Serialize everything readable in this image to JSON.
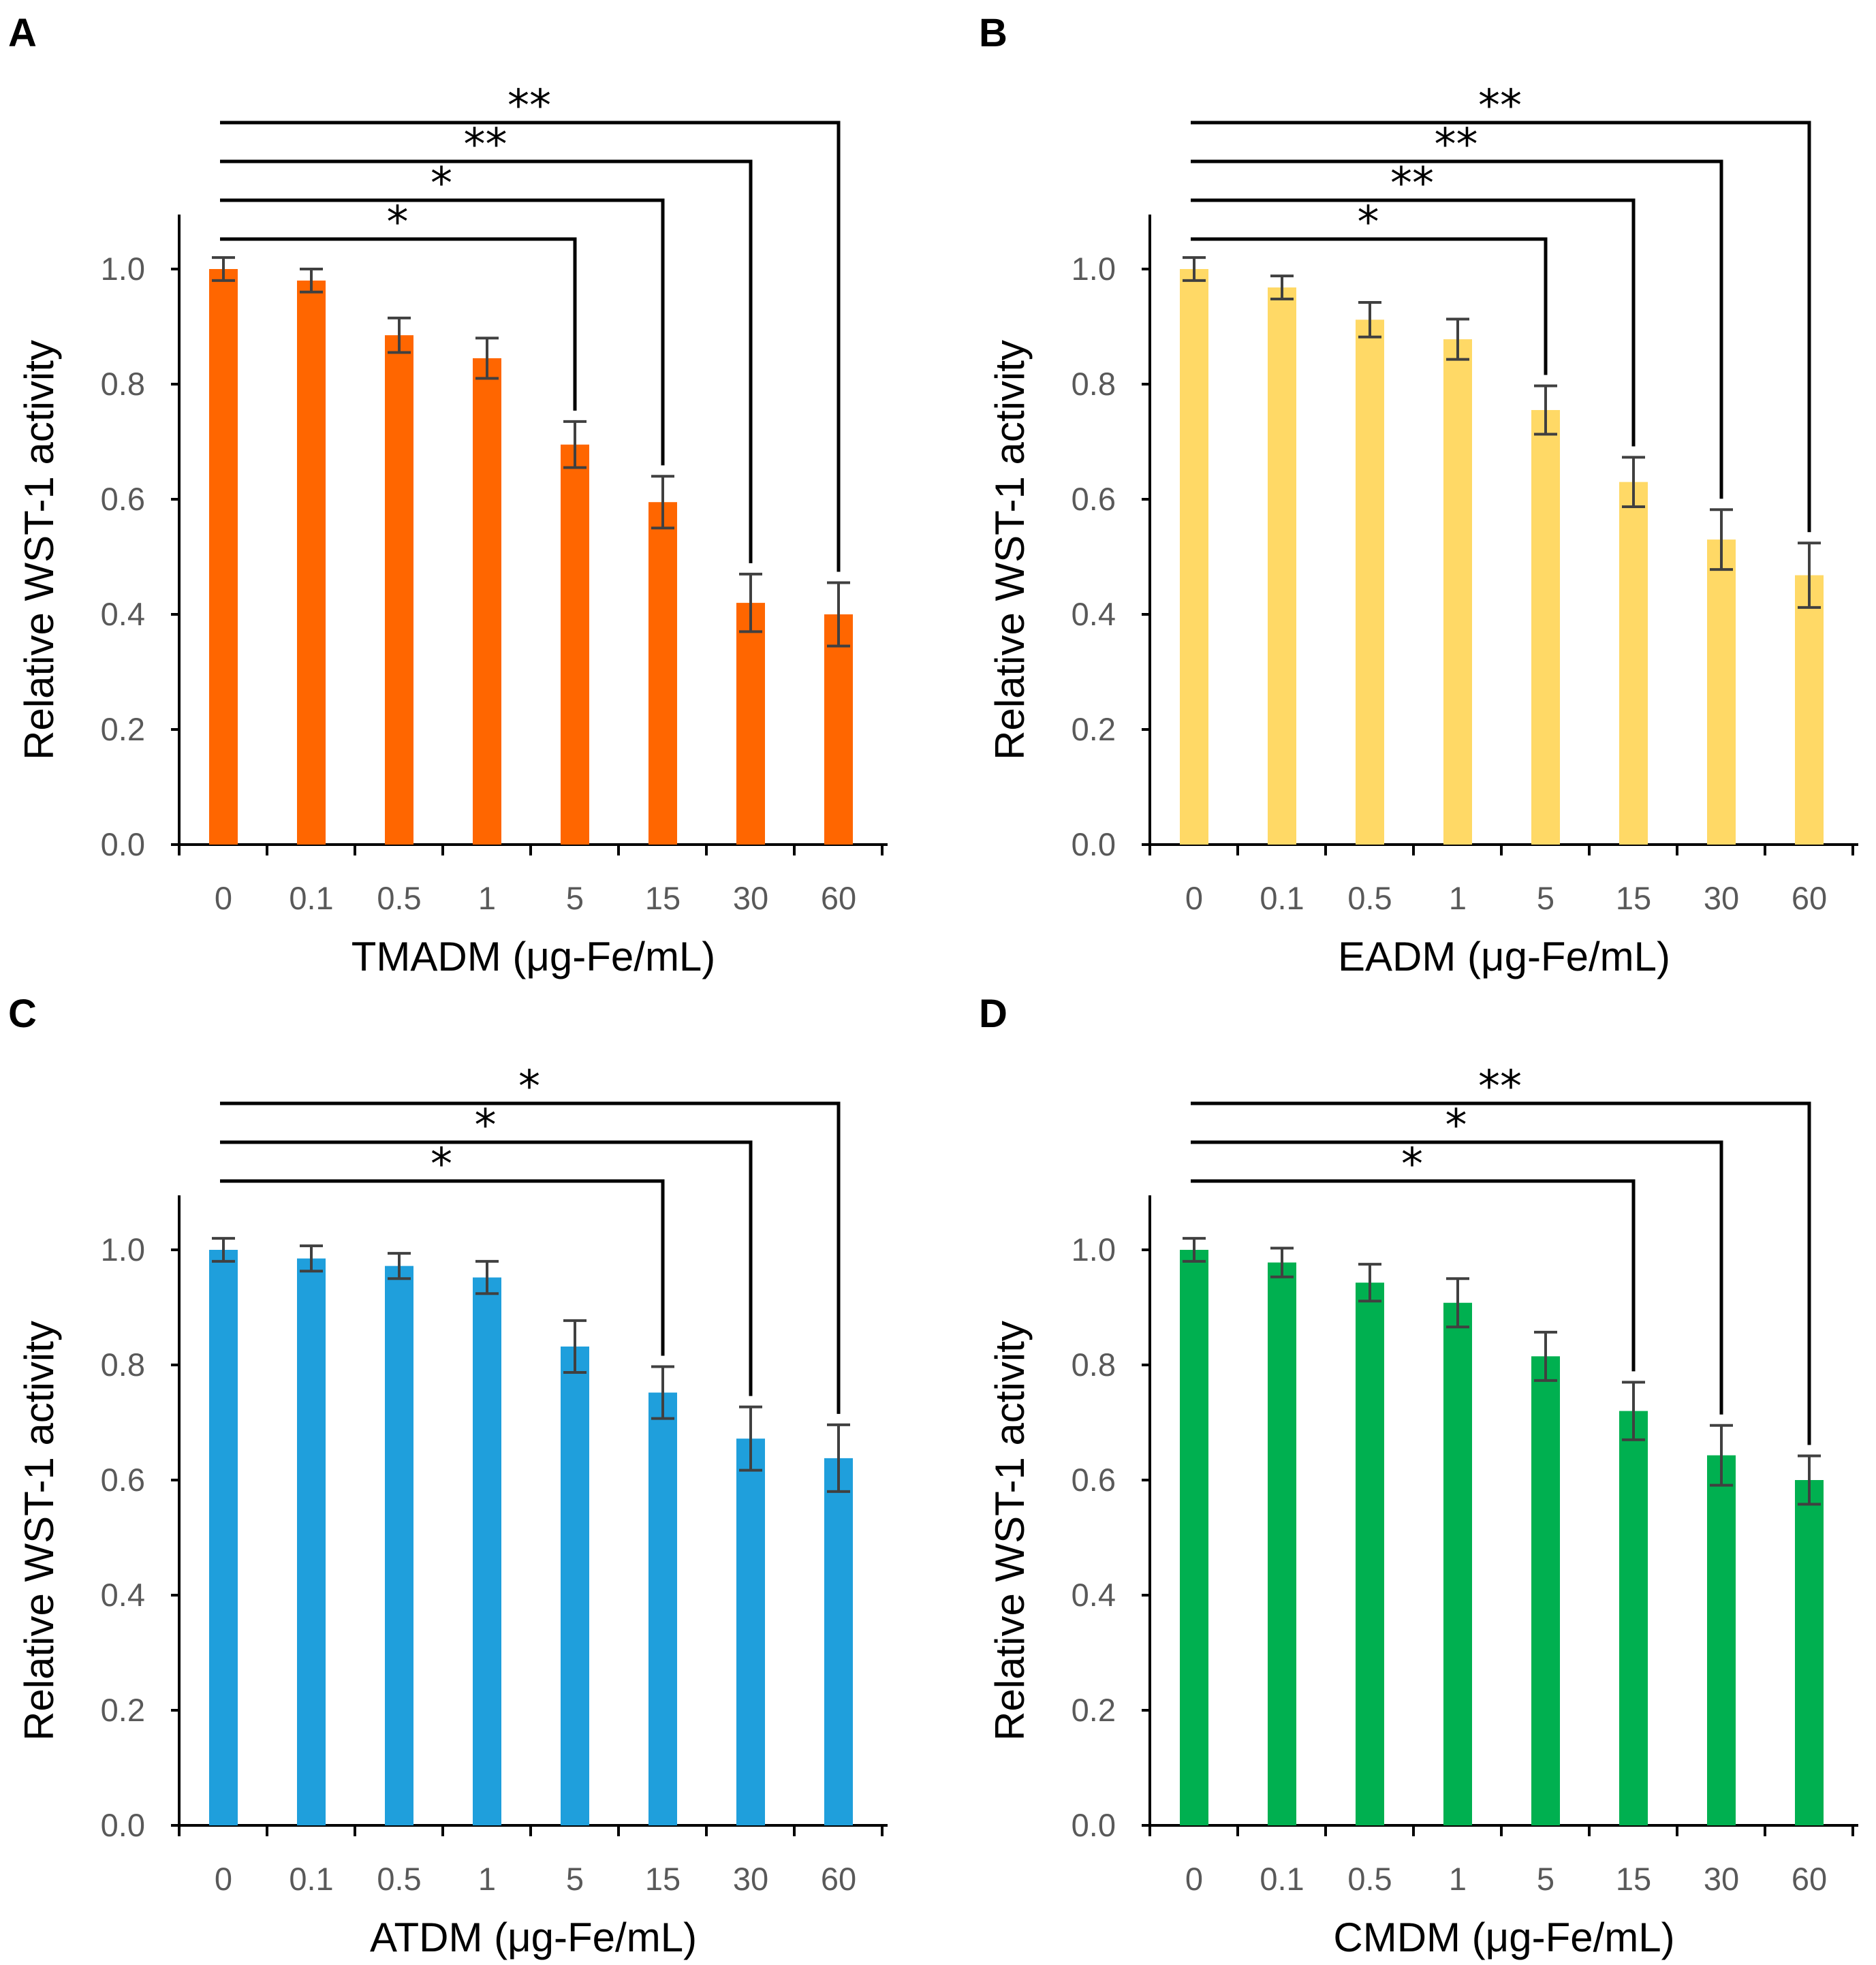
{
  "chart_data": [
    {
      "panel": "A",
      "type": "bar",
      "categories": [
        "0",
        "0.1",
        "0.5",
        "1",
        "5",
        "15",
        "30",
        "60"
      ],
      "values": [
        1.0,
        0.98,
        0.885,
        0.845,
        0.695,
        0.595,
        0.42,
        0.4
      ],
      "errors": [
        0.02,
        0.02,
        0.03,
        0.035,
        0.04,
        0.045,
        0.05,
        0.055
      ],
      "xlabel": "TMADM (μg-Fe/mL)",
      "ylabel": "Relative WST-1 activity",
      "ylim": [
        0,
        1.1
      ],
      "yticks": [
        "0.0",
        "0.2",
        "0.4",
        "0.6",
        "0.8",
        "1.0"
      ],
      "color": "#ff6600",
      "significance": [
        {
          "compare_to": "5",
          "label": "*"
        },
        {
          "compare_to": "15",
          "label": "*"
        },
        {
          "compare_to": "30",
          "label": "**"
        },
        {
          "compare_to": "60",
          "label": "**"
        }
      ]
    },
    {
      "panel": "B",
      "type": "bar",
      "categories": [
        "0",
        "0.1",
        "0.5",
        "1",
        "5",
        "15",
        "30",
        "60"
      ],
      "values": [
        1.0,
        0.968,
        0.912,
        0.878,
        0.755,
        0.63,
        0.53,
        0.468
      ],
      "errors": [
        0.02,
        0.02,
        0.03,
        0.035,
        0.042,
        0.043,
        0.052,
        0.056
      ],
      "xlabel": "EADM (μg-Fe/mL)",
      "ylabel": "Relative WST-1 activity",
      "ylim": [
        0,
        1.1
      ],
      "yticks": [
        "0.0",
        "0.2",
        "0.4",
        "0.6",
        "0.8",
        "1.0"
      ],
      "color": "#ffd966",
      "significance": [
        {
          "compare_to": "5",
          "label": "*"
        },
        {
          "compare_to": "15",
          "label": "**"
        },
        {
          "compare_to": "30",
          "label": "**"
        },
        {
          "compare_to": "60",
          "label": "**"
        }
      ]
    },
    {
      "panel": "C",
      "type": "bar",
      "categories": [
        "0",
        "0.1",
        "0.5",
        "1",
        "5",
        "15",
        "30",
        "60"
      ],
      "values": [
        1.0,
        0.985,
        0.972,
        0.952,
        0.832,
        0.752,
        0.672,
        0.638
      ],
      "errors": [
        0.02,
        0.022,
        0.022,
        0.028,
        0.045,
        0.045,
        0.055,
        0.058
      ],
      "xlabel": "ATDM (μg-Fe/mL)",
      "ylabel": "Relative WST-1 activity",
      "ylim": [
        0,
        1.1
      ],
      "yticks": [
        "0.0",
        "0.2",
        "0.4",
        "0.6",
        "0.8",
        "1.0"
      ],
      "color": "#1f9fdc",
      "significance": [
        {
          "compare_to": "15",
          "label": "*"
        },
        {
          "compare_to": "30",
          "label": "*"
        },
        {
          "compare_to": "60",
          "label": "*"
        }
      ]
    },
    {
      "panel": "D",
      "type": "bar",
      "categories": [
        "0",
        "0.1",
        "0.5",
        "1",
        "5",
        "15",
        "30",
        "60"
      ],
      "values": [
        1.0,
        0.978,
        0.943,
        0.908,
        0.815,
        0.72,
        0.643,
        0.6
      ],
      "errors": [
        0.02,
        0.025,
        0.032,
        0.042,
        0.042,
        0.05,
        0.052,
        0.042
      ],
      "xlabel": "CMDM (μg-Fe/mL)",
      "ylabel": "Relative WST-1 activity",
      "ylim": [
        0,
        1.1
      ],
      "yticks": [
        "0.0",
        "0.2",
        "0.4",
        "0.6",
        "0.8",
        "1.0"
      ],
      "color": "#00b050",
      "significance": [
        {
          "compare_to": "15",
          "label": "*"
        },
        {
          "compare_to": "30",
          "label": "*"
        },
        {
          "compare_to": "60",
          "label": "**"
        }
      ]
    }
  ]
}
